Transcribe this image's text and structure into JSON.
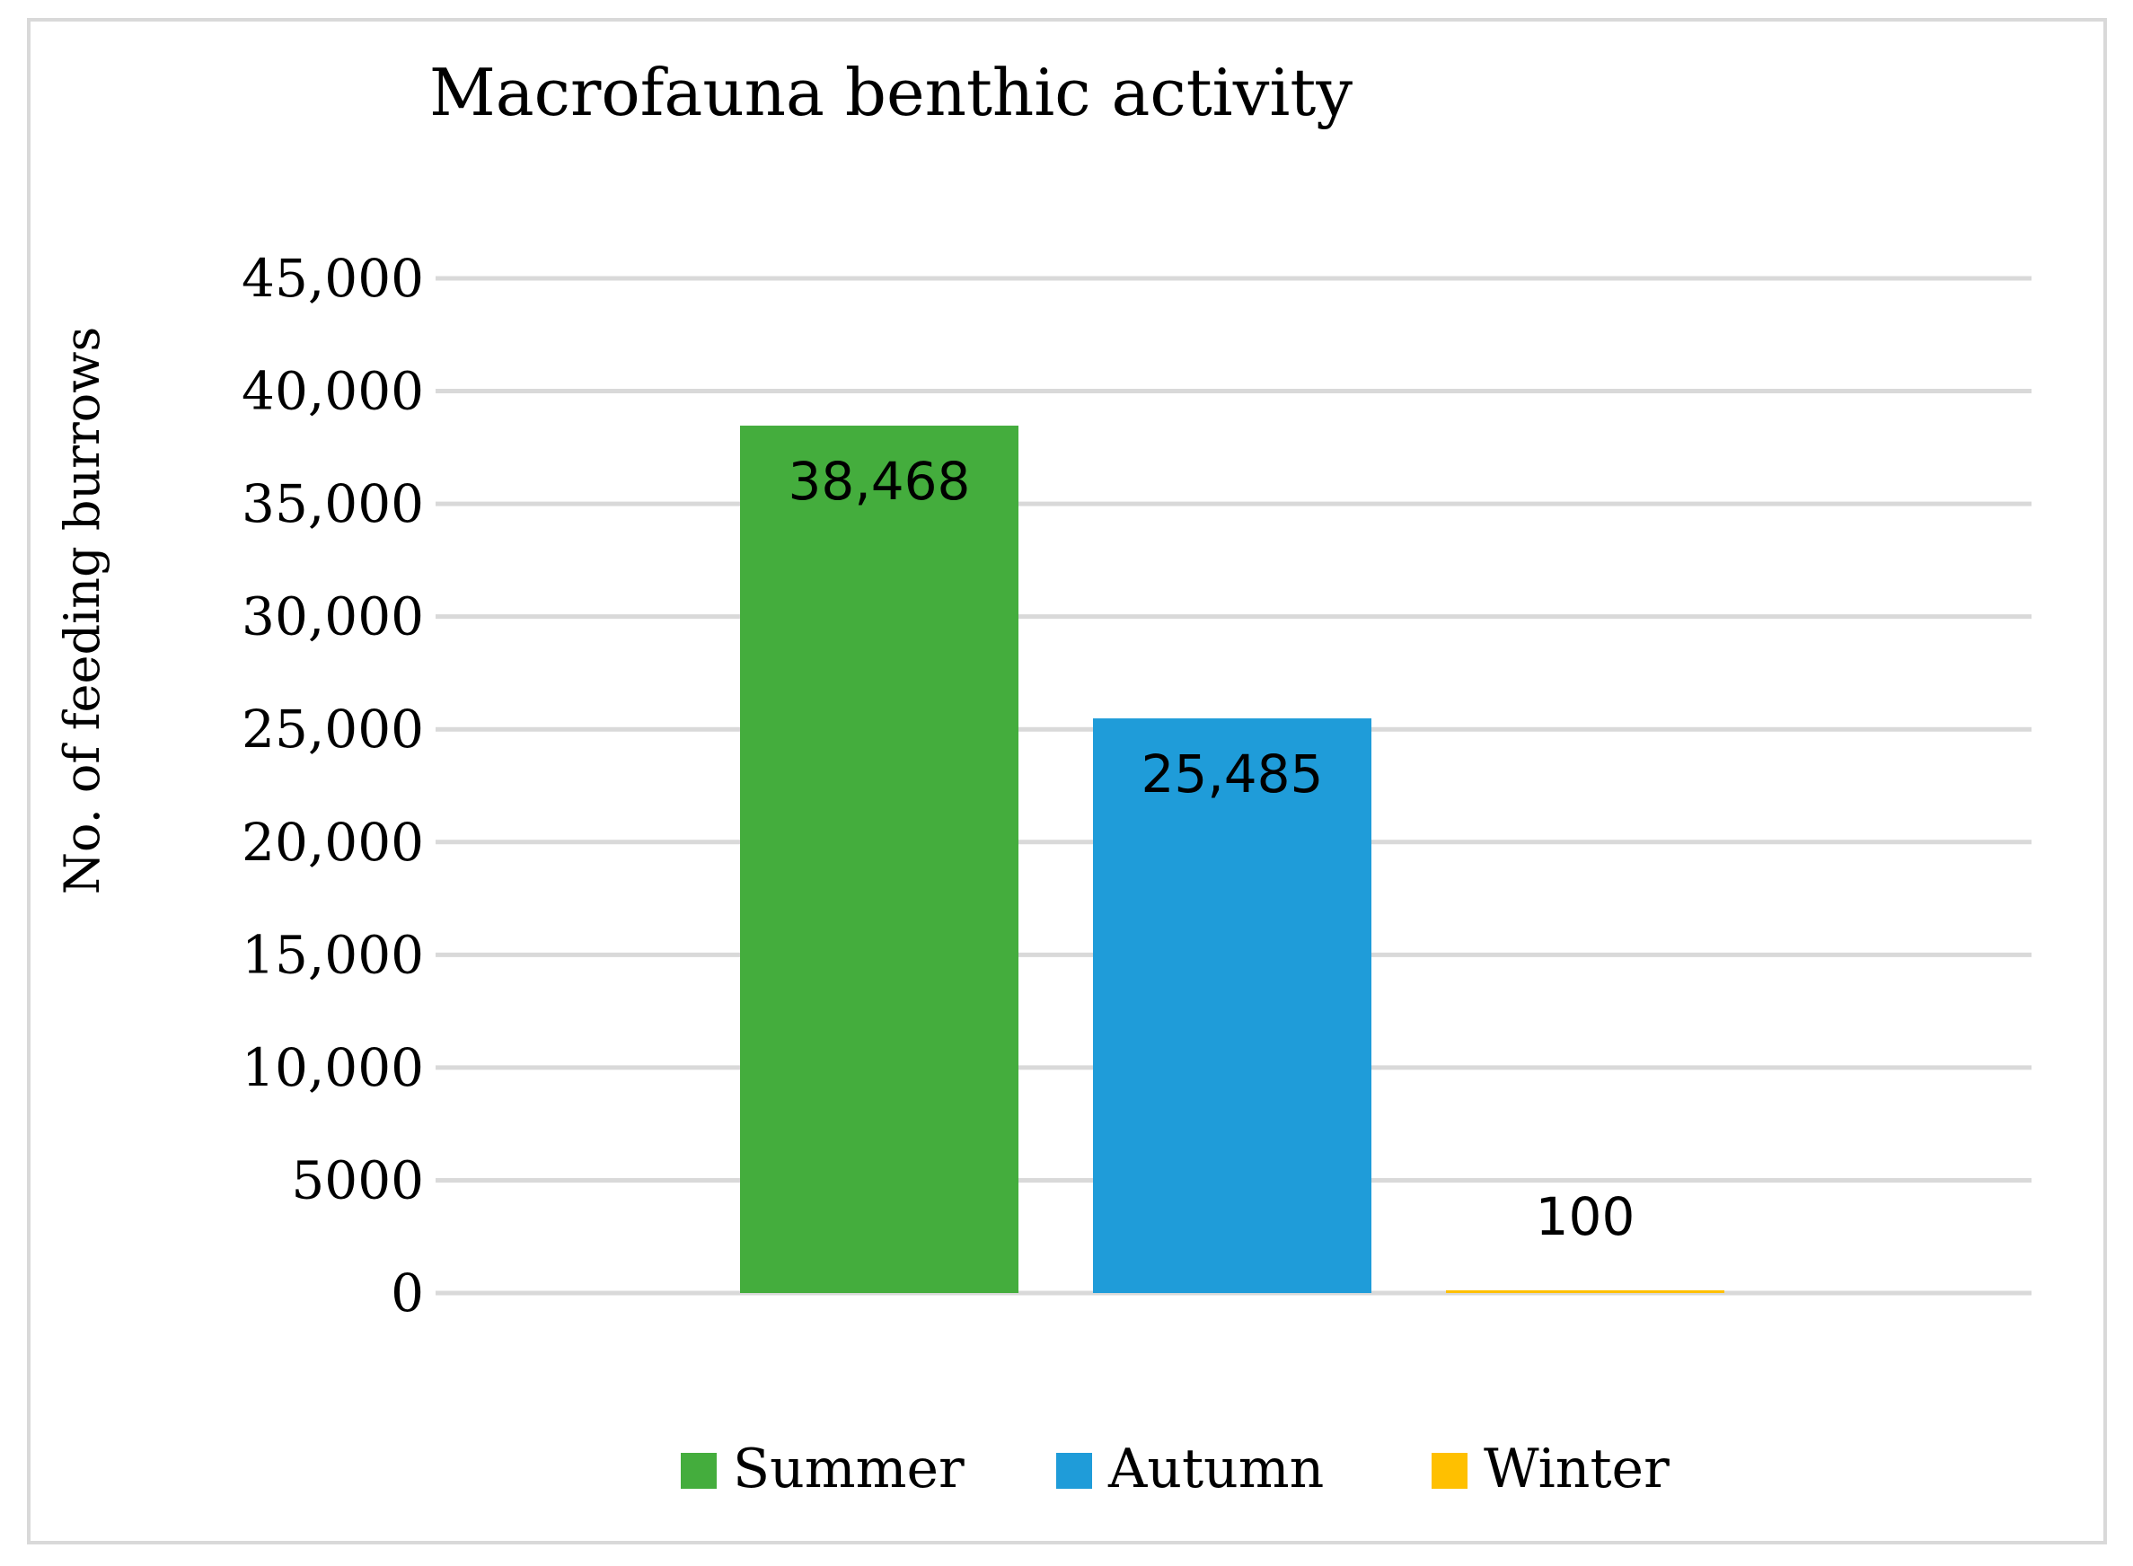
{
  "chart_data": {
    "type": "bar",
    "title": "Macrofauna benthic activity",
    "xlabel": "",
    "ylabel": "No. of feeding burrows",
    "ylim": [
      0,
      45000
    ],
    "yticks": [
      0,
      5000,
      10000,
      15000,
      20000,
      25000,
      30000,
      35000,
      40000,
      45000
    ],
    "ytick_labels": [
      "0",
      "5000",
      "10,000",
      "15,000",
      "20,000",
      "25,000",
      "30,000",
      "35,000",
      "40,000",
      "45,000"
    ],
    "grid": true,
    "legend_position": "bottom",
    "series": [
      {
        "name": "Summer",
        "value": 38468,
        "label": "38,468",
        "color": "#44ad3d"
      },
      {
        "name": "Autumn",
        "value": 25485,
        "label": "25,485",
        "color": "#1f9cd9"
      },
      {
        "name": "Winter",
        "value": 100,
        "label": "100",
        "color": "#ffc000"
      }
    ]
  }
}
